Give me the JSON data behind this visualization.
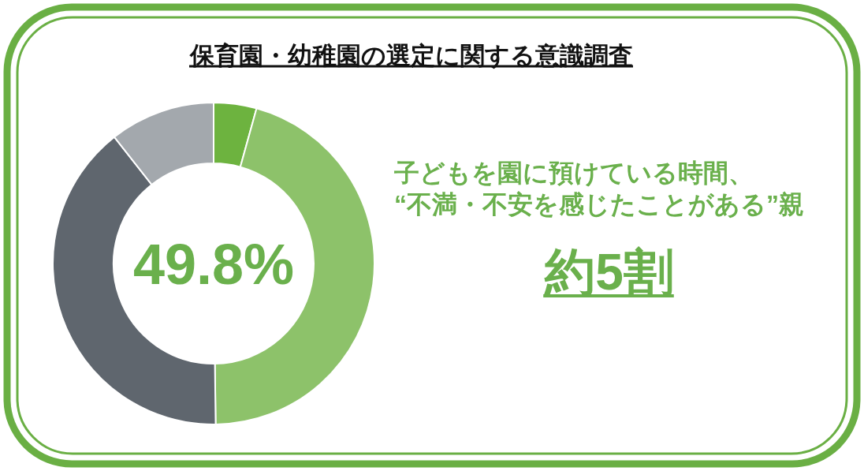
{
  "chart_data": {
    "type": "donut",
    "title": "保育園・幼稚園の選定に関する意識調査",
    "categories": [
      null,
      null,
      null,
      null
    ],
    "values": [
      4.3,
      45.5,
      39.6,
      10.6
    ],
    "colors": [
      "#6db33f",
      "#8dc26a",
      "#5f666e",
      "#a3a8ad"
    ],
    "annotations": [
      "49.8%",
      "子どもを園に預けている時間、",
      "“不満・不安を感じたことがある”親",
      "約5割"
    ]
  }
}
